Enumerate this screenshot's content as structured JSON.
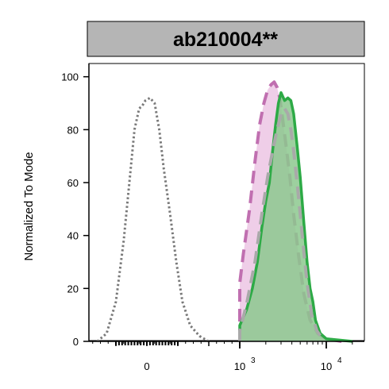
{
  "chart_data": {
    "type": "area",
    "title": "ab210004**",
    "xlabel": "",
    "ylabel": "Normalized To Mode",
    "ylim": [
      0,
      105
    ],
    "xscale": "biexponential",
    "x_tick_labels": [
      "0",
      "10",
      "10"
    ],
    "x_tick_exponents": [
      "",
      "3",
      "4"
    ],
    "y_ticks": [
      0,
      20,
      40,
      60,
      80,
      100
    ],
    "grid": false,
    "legend": "none",
    "series": [
      {
        "style": "dotted",
        "color": "#7a7a7a",
        "fill": "none",
        "points": [
          [
            -160,
            0
          ],
          [
            -130,
            3
          ],
          [
            -100,
            15
          ],
          [
            -75,
            38
          ],
          [
            -55,
            62
          ],
          [
            -40,
            80
          ],
          [
            -25,
            88
          ],
          [
            -15,
            89
          ],
          [
            -5,
            91
          ],
          [
            10,
            92
          ],
          [
            25,
            90
          ],
          [
            40,
            80
          ],
          [
            55,
            65
          ],
          [
            75,
            48
          ],
          [
            95,
            30
          ],
          [
            115,
            15
          ],
          [
            140,
            6
          ],
          [
            170,
            2
          ],
          [
            200,
            0
          ]
        ]
      },
      {
        "style": "dashed",
        "color": "#c06fb0",
        "fill": "#ecc6e4",
        "points": [
          [
            310,
            0
          ],
          [
            400,
            1
          ],
          [
            500,
            2
          ],
          [
            580,
            4
          ],
          [
            680,
            7
          ],
          [
            800,
            12
          ],
          [
            950,
            22
          ],
          [
            1100,
            33
          ],
          [
            1300,
            50
          ],
          [
            1500,
            68
          ],
          [
            1700,
            82
          ],
          [
            1900,
            90
          ],
          [
            2100,
            95
          ],
          [
            2300,
            97
          ],
          [
            2500,
            98
          ],
          [
            2700,
            96
          ],
          [
            2900,
            92
          ],
          [
            3100,
            85
          ],
          [
            3400,
            75
          ],
          [
            3800,
            62
          ],
          [
            4200,
            48
          ],
          [
            4800,
            32
          ],
          [
            5500,
            18
          ],
          [
            6500,
            8
          ],
          [
            8000,
            3
          ],
          [
            10000,
            1
          ],
          [
            15000,
            0
          ]
        ]
      },
      {
        "style": "solid",
        "color": "#2daa46",
        "fill": "#8cc88e",
        "points": [
          [
            400,
            0
          ],
          [
            600,
            1
          ],
          [
            800,
            3
          ],
          [
            1000,
            6
          ],
          [
            1200,
            12
          ],
          [
            1400,
            20
          ],
          [
            1600,
            30
          ],
          [
            1800,
            43
          ],
          [
            2000,
            53
          ],
          [
            2200,
            60
          ],
          [
            2400,
            72
          ],
          [
            2600,
            82
          ],
          [
            2800,
            90
          ],
          [
            3000,
            94
          ],
          [
            3300,
            91
          ],
          [
            3600,
            92
          ],
          [
            3900,
            91
          ],
          [
            4200,
            86
          ],
          [
            4600,
            74
          ],
          [
            5000,
            62
          ],
          [
            5500,
            45
          ],
          [
            6000,
            30
          ],
          [
            6500,
            20
          ],
          [
            7000,
            15
          ],
          [
            7500,
            8
          ],
          [
            8500,
            3
          ],
          [
            10000,
            1
          ],
          [
            20000,
            0
          ]
        ]
      },
      {
        "style": "dashed",
        "color": "#a9a9a9",
        "fill": "none",
        "points": [
          [
            500,
            0
          ],
          [
            900,
            4
          ],
          [
            1200,
            14
          ],
          [
            1500,
            30
          ],
          [
            1800,
            48
          ],
          [
            2100,
            62
          ],
          [
            2400,
            72
          ],
          [
            2700,
            80
          ],
          [
            3000,
            86
          ],
          [
            3300,
            88
          ],
          [
            3600,
            86
          ],
          [
            3900,
            80
          ],
          [
            4200,
            72
          ],
          [
            4600,
            60
          ],
          [
            5000,
            48
          ],
          [
            5500,
            34
          ],
          [
            6000,
            22
          ],
          [
            6800,
            10
          ],
          [
            7800,
            4
          ],
          [
            9000,
            1
          ]
        ]
      }
    ]
  }
}
